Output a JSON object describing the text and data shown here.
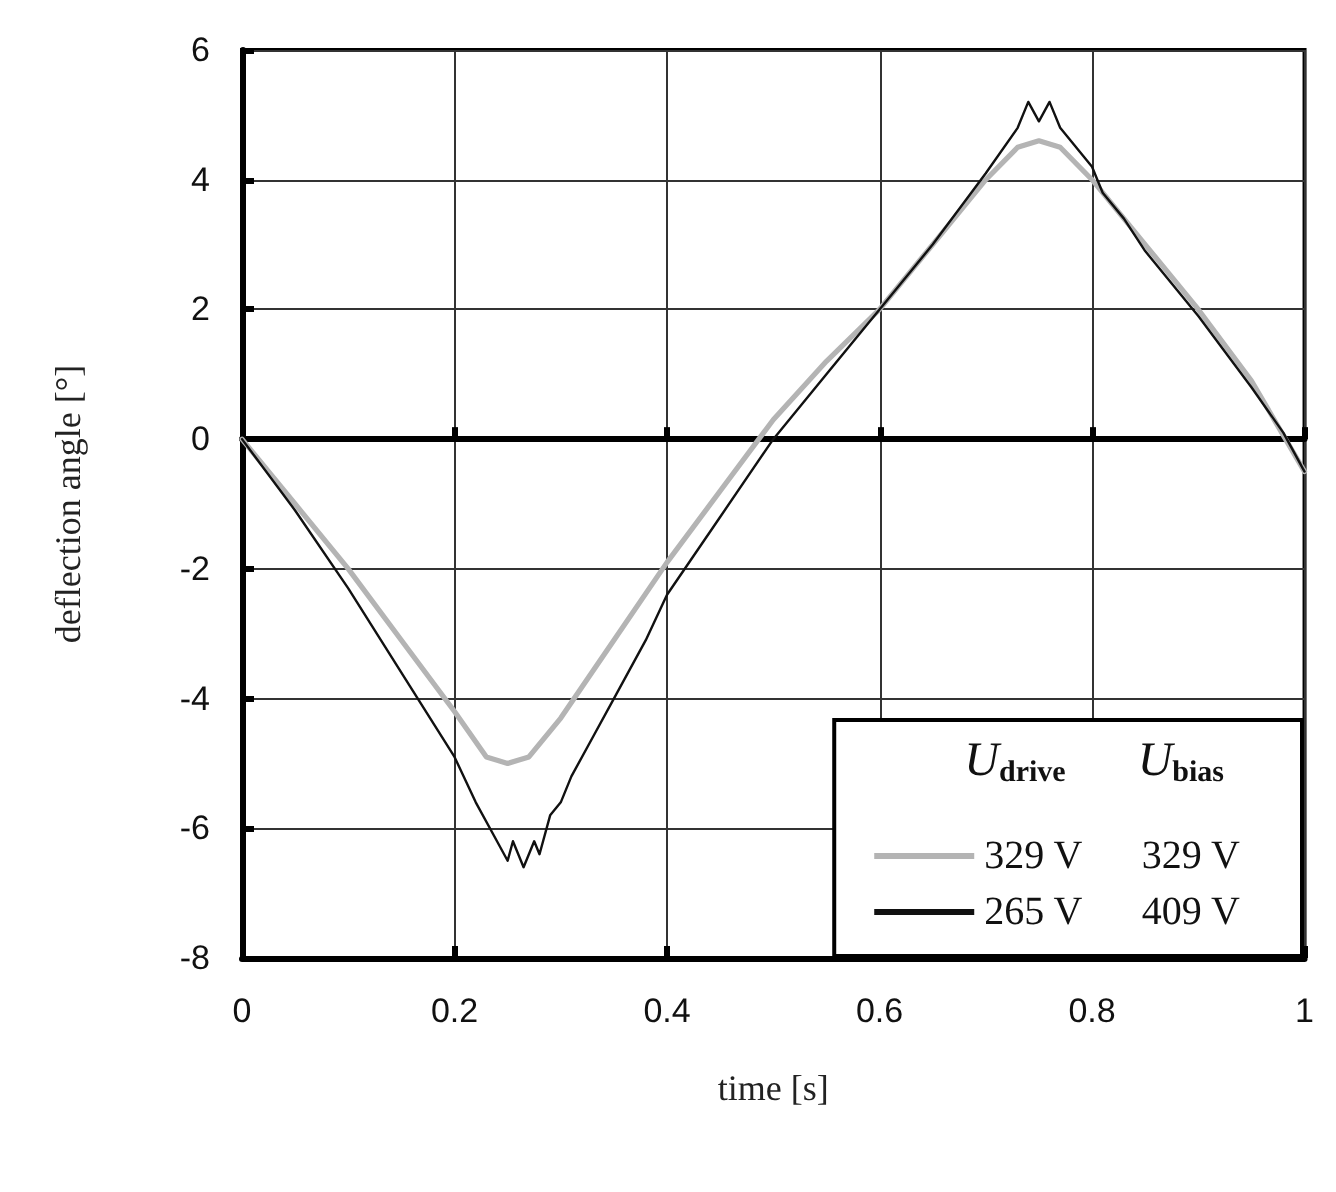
{
  "chart_data": {
    "type": "line",
    "xlabel": "time [s]",
    "ylabel": "deflection angle [°]",
    "legend_title": "U$_{drive}$ U$_{bias}$",
    "xlim": [
      0,
      1
    ],
    "xticks": [
      0,
      0.2,
      0.4,
      0.6,
      0.8,
      1
    ],
    "ylim": [
      -8,
      6
    ],
    "yticks": [
      -8,
      -6,
      -4,
      -2,
      0,
      2,
      4,
      6
    ],
    "grid": true,
    "legend": "bottom right",
    "marker": "none",
    "series": [
      {
        "name": "329 V 329 V",
        "color": "#b4b4b4",
        "x": [
          0,
          0.05,
          0.1,
          0.15,
          0.2,
          0.23,
          0.25,
          0.27,
          0.3,
          0.35,
          0.4,
          0.45,
          0.5,
          0.55,
          0.6,
          0.65,
          0.7,
          0.73,
          0.75,
          0.77,
          0.8,
          0.85,
          0.9,
          0.95,
          1
        ],
        "values": [
          0,
          -1.0,
          -2.0,
          -3.1,
          -4.2,
          -4.9,
          -5.0,
          -4.9,
          -4.3,
          -3.1,
          -1.9,
          -0.8,
          0.3,
          1.2,
          2.0,
          3.0,
          4.0,
          4.5,
          4.6,
          4.5,
          4.0,
          3.0,
          2.0,
          0.9,
          -0.5
        ]
      },
      {
        "name": "265 V 409 V",
        "color": "#111111",
        "x": [
          0,
          0.05,
          0.1,
          0.15,
          0.2,
          0.22,
          0.24,
          0.25,
          0.255,
          0.265,
          0.275,
          0.28,
          0.29,
          0.3,
          0.31,
          0.33,
          0.35,
          0.38,
          0.4,
          0.45,
          0.5,
          0.55,
          0.6,
          0.65,
          0.7,
          0.73,
          0.74,
          0.75,
          0.76,
          0.77,
          0.78,
          0.8,
          0.81,
          0.83,
          0.85,
          0.9,
          0.95,
          0.98,
          1
        ],
        "values": [
          0,
          -1.1,
          -2.3,
          -3.6,
          -4.9,
          -5.6,
          -6.2,
          -6.5,
          -6.2,
          -6.6,
          -6.2,
          -6.4,
          -5.8,
          -5.6,
          -5.2,
          -4.6,
          -4.0,
          -3.1,
          -2.4,
          -1.2,
          0,
          1.0,
          2.0,
          3.0,
          4.1,
          4.8,
          5.2,
          4.9,
          5.2,
          4.8,
          4.6,
          4.2,
          3.8,
          3.4,
          2.9,
          1.9,
          0.8,
          0.1,
          -0.5
        ]
      }
    ]
  }
}
